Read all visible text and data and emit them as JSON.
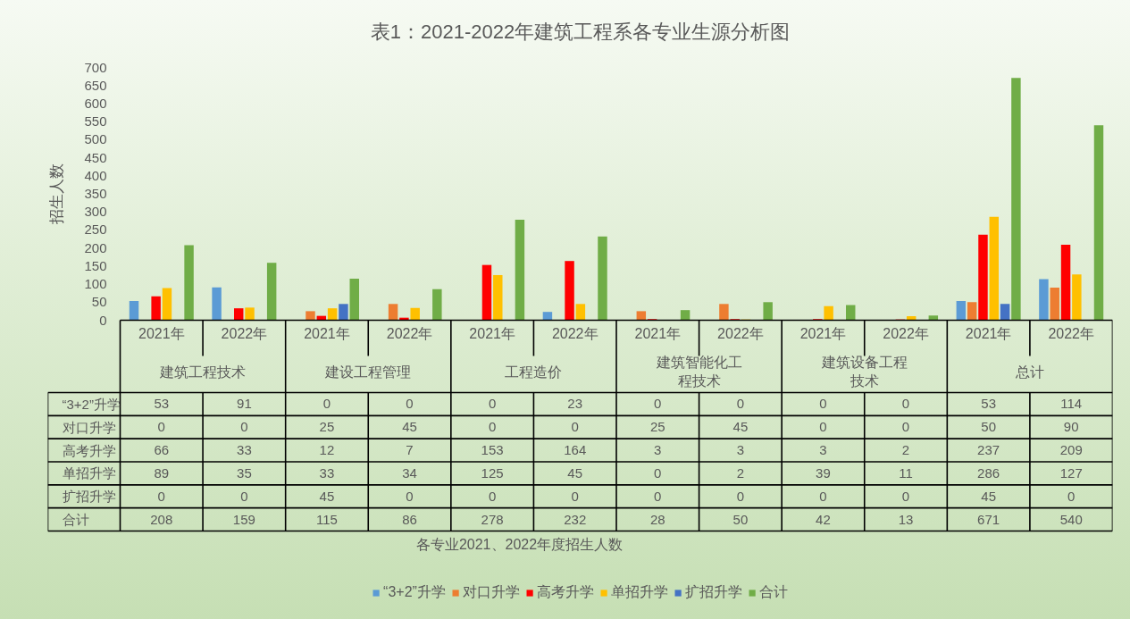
{
  "chart_data": {
    "type": "bar",
    "title": "表1：2021-2022年建筑工程系各专业生源分析图",
    "ylabel": "招生人数",
    "categories": [
      "2021年",
      "2022年",
      "2021年",
      "2022年",
      "2021年",
      "2022年",
      "2021年",
      "2022年",
      "2021年",
      "2022年",
      "2021年",
      "2022年"
    ],
    "annotations": [
      "建筑工程技术",
      "建设工程管理",
      "工程造价",
      "建筑智能化工程技术",
      "建筑设备工程技术",
      "总计",
      "各专业2021、2022年度招生人数"
    ],
    "series": [
      {
        "name": "“3+2”升学",
        "color": "#5b9bd5",
        "values": [
          53,
          91,
          0,
          0,
          0,
          23,
          0,
          0,
          0,
          0,
          53,
          114
        ]
      },
      {
        "name": "对口升学",
        "color": "#ed7d31",
        "values": [
          0,
          0,
          25,
          45,
          0,
          0,
          25,
          45,
          0,
          0,
          50,
          90
        ]
      },
      {
        "name": "高考升学",
        "color": "#ff0000",
        "values": [
          66,
          33,
          12,
          7,
          153,
          164,
          3,
          3,
          3,
          2,
          237,
          209
        ]
      },
      {
        "name": "单招升学",
        "color": "#ffc000",
        "values": [
          89,
          35,
          33,
          34,
          125,
          45,
          0,
          2,
          39,
          11,
          286,
          127
        ]
      },
      {
        "name": "扩招升学",
        "color": "#4472c4",
        "values": [
          0,
          0,
          45,
          0,
          0,
          0,
          0,
          0,
          0,
          0,
          45,
          0
        ]
      },
      {
        "name": "合计",
        "color": "#70ad47",
        "values": [
          208,
          159,
          115,
          86,
          278,
          232,
          28,
          50,
          42,
          13,
          671,
          540
        ]
      }
    ],
    "ylim": [
      0,
      700
    ],
    "yticks": [
      0,
      50,
      100,
      150,
      200,
      250,
      300,
      350,
      400,
      450,
      500,
      550,
      600,
      650,
      700
    ],
    "data_labels": true,
    "legend": "bottom"
  }
}
